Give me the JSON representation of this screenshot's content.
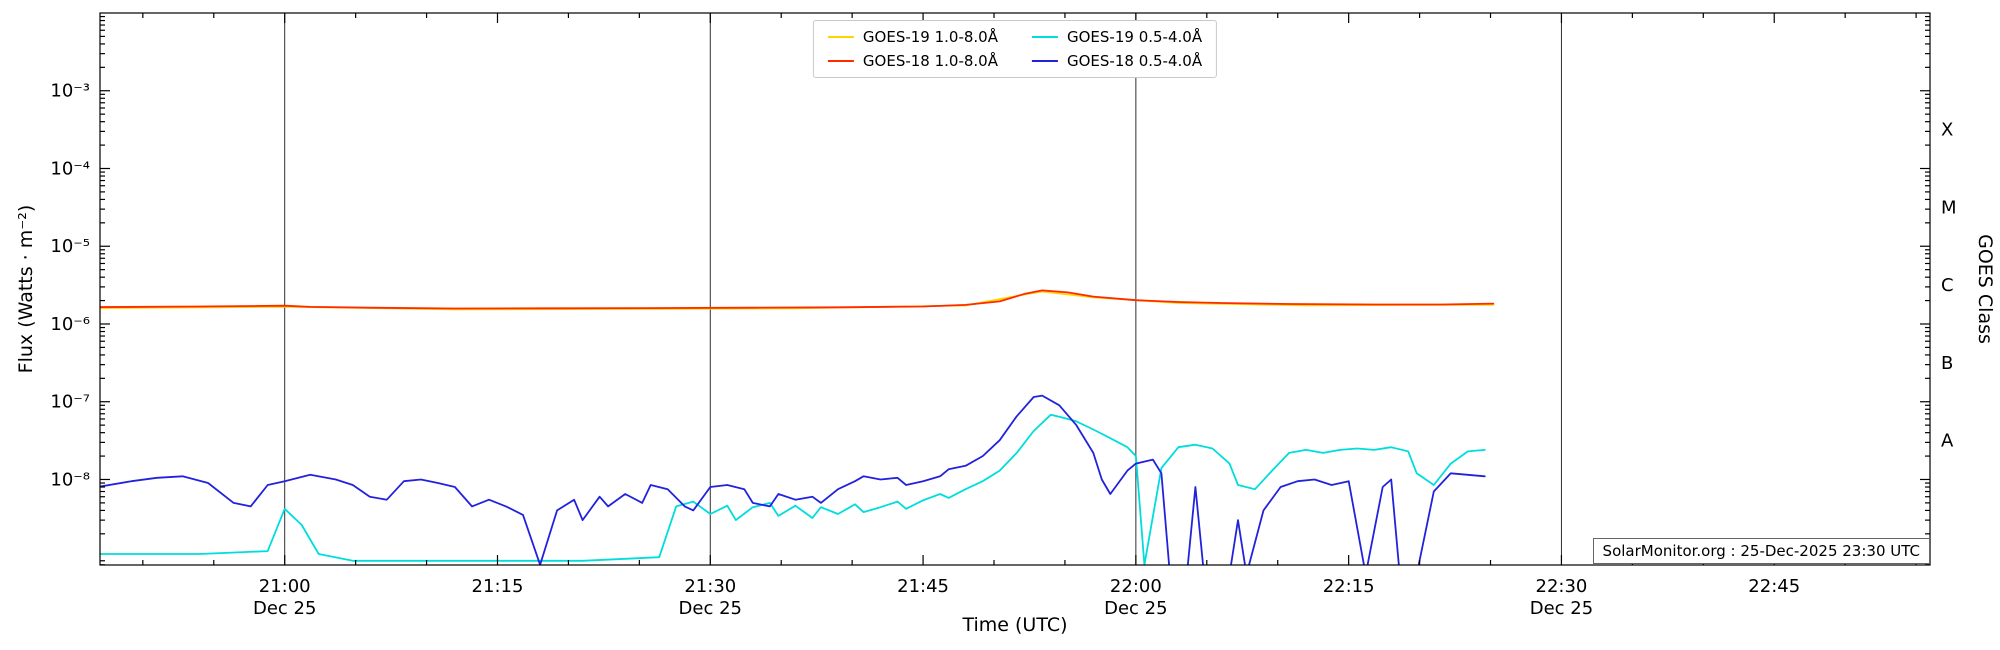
{
  "figure": {
    "watermark": "SolarMonitor.org : 25-Dec-2025 23:30 UTC"
  },
  "chart_data": {
    "type": "line",
    "title": "",
    "xlabel": "Time (UTC)",
    "ylabel": "Flux (Watts · m⁻²)",
    "ylabel_right": "GOES Class",
    "x_unit": "decimal_hours_utc",
    "xlim": [
      20.783,
      22.933
    ],
    "ylim_log10": [
      -9.1,
      -2.0
    ],
    "y_scale": "log",
    "legend_position": "top-center",
    "event_lines_h": [
      21.0,
      21.5,
      22.0,
      22.5
    ],
    "x_ticks": [
      {
        "t": 21.0,
        "label": "21:00",
        "date": "Dec 25"
      },
      {
        "t": 21.25,
        "label": "21:15",
        "date": ""
      },
      {
        "t": 21.5,
        "label": "21:30",
        "date": "Dec 25"
      },
      {
        "t": 21.75,
        "label": "21:45",
        "date": ""
      },
      {
        "t": 22.0,
        "label": "22:00",
        "date": "Dec 25"
      },
      {
        "t": 22.25,
        "label": "22:15",
        "date": ""
      },
      {
        "t": 22.5,
        "label": "22:30",
        "date": "Dec 25"
      },
      {
        "t": 22.75,
        "label": "22:45",
        "date": ""
      }
    ],
    "y_ticks": [
      {
        "exp": -3,
        "label": "10⁻³"
      },
      {
        "exp": -4,
        "label": "10⁻⁴"
      },
      {
        "exp": -5,
        "label": "10⁻⁵"
      },
      {
        "exp": -6,
        "label": "10⁻⁶"
      },
      {
        "exp": -7,
        "label": "10⁻⁷"
      },
      {
        "exp": -8,
        "label": "10⁻⁸"
      }
    ],
    "goes_class_labels": [
      {
        "label": "X",
        "exp": -3.5
      },
      {
        "label": "M",
        "exp": -4.5
      },
      {
        "label": "C",
        "exp": -5.5
      },
      {
        "label": "B",
        "exp": -6.5
      },
      {
        "label": "A",
        "exp": -7.5
      }
    ],
    "series": [
      {
        "name": "GOES-19 1.0-8.0Å",
        "color": "#ffd400",
        "points": [
          [
            20.78,
            1.6e-06
          ],
          [
            21.0,
            1.67e-06
          ],
          [
            21.2,
            1.54e-06
          ],
          [
            21.4,
            1.56e-06
          ],
          [
            21.6,
            1.59e-06
          ],
          [
            21.8,
            1.73e-06
          ],
          [
            21.87,
            2.4e-06
          ],
          [
            21.89,
            2.62e-06
          ],
          [
            21.95,
            2.2e-06
          ],
          [
            22.05,
            1.86e-06
          ],
          [
            22.2,
            1.74e-06
          ],
          [
            22.42,
            1.77e-06
          ]
        ]
      },
      {
        "name": "GOES-18 1.0-8.0Å",
        "color": "#ff2a00",
        "points": [
          [
            20.78,
            1.65e-06
          ],
          [
            20.9,
            1.68e-06
          ],
          [
            21.0,
            1.72e-06
          ],
          [
            21.03,
            1.66e-06
          ],
          [
            21.1,
            1.62e-06
          ],
          [
            21.2,
            1.58e-06
          ],
          [
            21.3,
            1.59e-06
          ],
          [
            21.42,
            1.6e-06
          ],
          [
            21.55,
            1.62e-06
          ],
          [
            21.65,
            1.64e-06
          ],
          [
            21.75,
            1.68e-06
          ],
          [
            21.8,
            1.76e-06
          ],
          [
            21.84,
            1.95e-06
          ],
          [
            21.87,
            2.45e-06
          ],
          [
            21.89,
            2.7e-06
          ],
          [
            21.92,
            2.55e-06
          ],
          [
            21.95,
            2.25e-06
          ],
          [
            22.0,
            2.02e-06
          ],
          [
            22.05,
            1.92e-06
          ],
          [
            22.1,
            1.86e-06
          ],
          [
            22.18,
            1.81e-06
          ],
          [
            22.28,
            1.78e-06
          ],
          [
            22.36,
            1.78e-06
          ],
          [
            22.42,
            1.83e-06
          ]
        ]
      },
      {
        "name": "GOES-19 0.5-4.0Å",
        "color": "#00dddd",
        "points": [
          [
            20.78,
            1.1e-09
          ],
          [
            20.9,
            1.1e-09
          ],
          [
            20.98,
            1.2e-09
          ],
          [
            21.0,
            4.2e-09
          ],
          [
            21.02,
            2.6e-09
          ],
          [
            21.04,
            1.1e-09
          ],
          [
            21.08,
            9e-10
          ],
          [
            21.2,
            9e-10
          ],
          [
            21.35,
            9e-10
          ],
          [
            21.44,
            1e-09
          ],
          [
            21.46,
            4.5e-09
          ],
          [
            21.48,
            5.2e-09
          ],
          [
            21.5,
            3.6e-09
          ],
          [
            21.52,
            4.6e-09
          ],
          [
            21.53,
            3e-09
          ],
          [
            21.55,
            4.4e-09
          ],
          [
            21.57,
            5e-09
          ],
          [
            21.58,
            3.4e-09
          ],
          [
            21.6,
            4.6e-09
          ],
          [
            21.62,
            3.2e-09
          ],
          [
            21.63,
            4.4e-09
          ],
          [
            21.65,
            3.6e-09
          ],
          [
            21.67,
            4.8e-09
          ],
          [
            21.68,
            3.8e-09
          ],
          [
            21.7,
            4.4e-09
          ],
          [
            21.72,
            5.2e-09
          ],
          [
            21.73,
            4.2e-09
          ],
          [
            21.75,
            5.4e-09
          ],
          [
            21.77,
            6.5e-09
          ],
          [
            21.78,
            5.8e-09
          ],
          [
            21.8,
            7.5e-09
          ],
          [
            21.82,
            9.5e-09
          ],
          [
            21.84,
            1.3e-08
          ],
          [
            21.86,
            2.2e-08
          ],
          [
            21.88,
            4.2e-08
          ],
          [
            21.9,
            6.8e-08
          ],
          [
            21.91,
            6.4e-08
          ],
          [
            21.93,
            5.6e-08
          ],
          [
            21.95,
            4.4e-08
          ],
          [
            21.97,
            3.4e-08
          ],
          [
            21.99,
            2.6e-08
          ],
          [
            22.0,
            2e-08
          ],
          [
            22.01,
            8e-10
          ],
          [
            22.03,
            1.4e-08
          ],
          [
            22.05,
            2.6e-08
          ],
          [
            22.07,
            2.8e-08
          ],
          [
            22.09,
            2.5e-08
          ],
          [
            22.11,
            1.6e-08
          ],
          [
            22.12,
            8.5e-09
          ],
          [
            22.14,
            7.5e-09
          ],
          [
            22.16,
            1.3e-08
          ],
          [
            22.18,
            2.2e-08
          ],
          [
            22.2,
            2.4e-08
          ],
          [
            22.22,
            2.2e-08
          ],
          [
            22.24,
            2.4e-08
          ],
          [
            22.26,
            2.5e-08
          ],
          [
            22.28,
            2.4e-08
          ],
          [
            22.3,
            2.6e-08
          ],
          [
            22.32,
            2.3e-08
          ],
          [
            22.33,
            1.2e-08
          ],
          [
            22.35,
            8.5e-09
          ],
          [
            22.37,
            1.6e-08
          ],
          [
            22.39,
            2.3e-08
          ],
          [
            22.41,
            2.4e-08
          ]
        ]
      },
      {
        "name": "GOES-18 0.5-4.0Å",
        "color": "#2222dd",
        "points": [
          [
            20.78,
            8e-09
          ],
          [
            20.82,
            9.5e-09
          ],
          [
            20.85,
            1.05e-08
          ],
          [
            20.88,
            1.1e-08
          ],
          [
            20.91,
            9e-09
          ],
          [
            20.94,
            5e-09
          ],
          [
            20.96,
            4.5e-09
          ],
          [
            20.98,
            8.5e-09
          ],
          [
            21.0,
            9.5e-09
          ],
          [
            21.03,
            1.15e-08
          ],
          [
            21.06,
            1e-08
          ],
          [
            21.08,
            8.5e-09
          ],
          [
            21.1,
            6e-09
          ],
          [
            21.12,
            5.5e-09
          ],
          [
            21.14,
            9.5e-09
          ],
          [
            21.16,
            1e-08
          ],
          [
            21.18,
            9e-09
          ],
          [
            21.2,
            8e-09
          ],
          [
            21.22,
            4.5e-09
          ],
          [
            21.24,
            5.5e-09
          ],
          [
            21.26,
            4.5e-09
          ],
          [
            21.28,
            3.5e-09
          ],
          [
            21.3,
            8e-10
          ],
          [
            21.32,
            4e-09
          ],
          [
            21.34,
            5.5e-09
          ],
          [
            21.35,
            3e-09
          ],
          [
            21.37,
            6e-09
          ],
          [
            21.38,
            4.5e-09
          ],
          [
            21.4,
            6.5e-09
          ],
          [
            21.42,
            5e-09
          ],
          [
            21.43,
            8.5e-09
          ],
          [
            21.45,
            7.5e-09
          ],
          [
            21.47,
            4.5e-09
          ],
          [
            21.48,
            4e-09
          ],
          [
            21.5,
            8e-09
          ],
          [
            21.52,
            8.5e-09
          ],
          [
            21.54,
            7.5e-09
          ],
          [
            21.55,
            5e-09
          ],
          [
            21.57,
            4.5e-09
          ],
          [
            21.58,
            6.5e-09
          ],
          [
            21.6,
            5.5e-09
          ],
          [
            21.62,
            6e-09
          ],
          [
            21.63,
            5e-09
          ],
          [
            21.65,
            7.5e-09
          ],
          [
            21.67,
            9.5e-09
          ],
          [
            21.68,
            1.1e-08
          ],
          [
            21.7,
            1e-08
          ],
          [
            21.72,
            1.05e-08
          ],
          [
            21.73,
            8.5e-09
          ],
          [
            21.75,
            9.5e-09
          ],
          [
            21.77,
            1.1e-08
          ],
          [
            21.78,
            1.35e-08
          ],
          [
            21.8,
            1.5e-08
          ],
          [
            21.82,
            2e-08
          ],
          [
            21.84,
            3.2e-08
          ],
          [
            21.86,
            6.5e-08
          ],
          [
            21.88,
            1.15e-07
          ],
          [
            21.89,
            1.2e-07
          ],
          [
            21.91,
            9e-08
          ],
          [
            21.93,
            5e-08
          ],
          [
            21.95,
            2.2e-08
          ],
          [
            21.96,
            1e-08
          ],
          [
            21.97,
            6.5e-09
          ],
          [
            21.99,
            1.3e-08
          ],
          [
            22.0,
            1.6e-08
          ],
          [
            22.02,
            1.8e-08
          ],
          [
            22.03,
            1.2e-08
          ],
          [
            22.04,
            6e-10
          ],
          [
            22.06,
            6e-10
          ],
          [
            22.07,
            8e-09
          ],
          [
            22.08,
            6e-10
          ],
          [
            22.11,
            6e-10
          ],
          [
            22.12,
            3e-09
          ],
          [
            22.13,
            6e-10
          ],
          [
            22.15,
            4e-09
          ],
          [
            22.17,
            8e-09
          ],
          [
            22.19,
            9.5e-09
          ],
          [
            22.21,
            1e-08
          ],
          [
            22.23,
            8.5e-09
          ],
          [
            22.25,
            9.5e-09
          ],
          [
            22.27,
            6e-10
          ],
          [
            22.29,
            8e-09
          ],
          [
            22.3,
            1e-08
          ],
          [
            22.31,
            6e-10
          ],
          [
            22.33,
            6e-10
          ],
          [
            22.35,
            7e-09
          ],
          [
            22.37,
            1.2e-08
          ],
          [
            22.39,
            1.15e-08
          ],
          [
            22.41,
            1.1e-08
          ]
        ]
      }
    ]
  }
}
